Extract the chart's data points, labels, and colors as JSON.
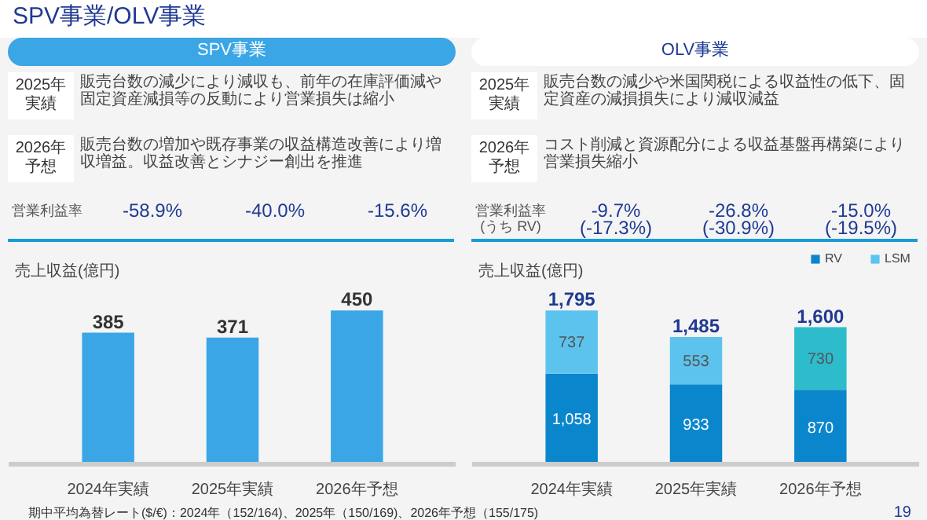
{
  "chart_data": [
    {
      "type": "bar",
      "title": "SPV事業",
      "ylabel": "売上収益(億円)",
      "categories": [
        "2024年実績",
        "2025年実績",
        "2026年予想"
      ],
      "values": [
        385,
        371,
        450
      ],
      "color": "#3aa6e6",
      "data_labels": true,
      "grid": false,
      "legend": false,
      "annotations": [
        "SPV事業/OLV事業",
        "2025年実績",
        "販売台数の減少により減収も、前年の在庫評価減や固定資産減損等の反動により営業損失は縮小",
        "2026年予想",
        "販売台数の増加や既存事業の収益構造改善により増収増益。収益改善とシナジー創出を推進",
        "営業利益率",
        "-58.9%",
        "-40.0%",
        "-15.6%",
        "期中平均為替レート($/€)：2024年（152/164)、2025年（150/169)、2026年予想（155/175)"
      ]
    },
    {
      "type": "bar",
      "title": "OLV事業",
      "ylabel": "売上収益(億円)",
      "categories": [
        "2024年実績",
        "2025年実績",
        "2026年予想"
      ],
      "stacked": true,
      "legend": "top right",
      "grid": false,
      "series": [
        {
          "name": "RV",
          "color": "#0a86cc",
          "values": [
            1058,
            933,
            870
          ],
          "value_labels": [
            "1,058",
            "933",
            "870"
          ]
        },
        {
          "name": "LSM",
          "color": "#5cc3ee",
          "colors": [
            "#5cc3ee",
            "#5cc3ee",
            "#2cbccc"
          ],
          "values": [
            737,
            553,
            730
          ],
          "value_labels": [
            "737",
            "553",
            "730"
          ]
        }
      ],
      "totals": [
        "1,795",
        "1,485",
        "1,600"
      ],
      "annotations": [
        "2025年実績",
        "販売台数の減少や米国関税による収益性の低下、固定資産の減損損失により減収減益",
        "2026年予想",
        "コスト削減と資源配分による収益基盤再構築により営業損失縮小",
        "営業利益率(うち RV)",
        "-9.7%\n(-17.3%)",
        "-26.8%\n(-30.9%)",
        "-15.0%\n(-19.5%)",
        "19"
      ]
    }
  ]
}
